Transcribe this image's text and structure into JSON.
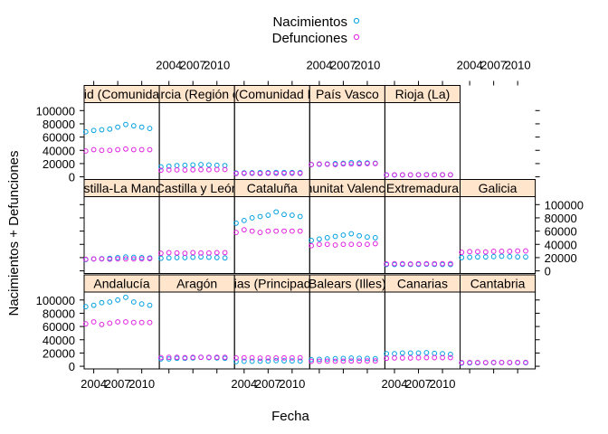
{
  "chart_data": {
    "type": "scatter",
    "layout": "lattice-trellis",
    "xlabel": "Fecha",
    "ylabel": "Nacimientos + Defunciones",
    "x_ticks": [
      "2004",
      "2007",
      "2010"
    ],
    "y_ticks": [
      "0",
      "20000",
      "40000",
      "60000",
      "80000",
      "100000"
    ],
    "xlim": [
      2002.8,
      2012.2
    ],
    "ylim": [
      -4000,
      112000
    ],
    "legend": {
      "position": "top",
      "entries": [
        {
          "name": "Nacimientos",
          "color": "#00a0e0"
        },
        {
          "name": "Defunciones",
          "color": "#e020e0"
        }
      ]
    },
    "x": [
      2003,
      2004,
      2005,
      2006,
      2007,
      2008,
      2009,
      2010,
      2011
    ],
    "panels": [
      {
        "label": "Andalucía",
        "row": 3,
        "col": 1,
        "nacimientos": [
          90000,
          92000,
          96000,
          97000,
          100000,
          104000,
          97000,
          94000,
          92000
        ],
        "defunciones": [
          64000,
          67000,
          63000,
          65000,
          67000,
          67000,
          66000,
          66000,
          66000
        ]
      },
      {
        "label": "Aragón",
        "row": 3,
        "col": 2,
        "nacimientos": [
          11000,
          11000,
          12000,
          12000,
          12500,
          13500,
          13000,
          12500,
          12000
        ],
        "defunciones": [
          13000,
          13500,
          13500,
          13000,
          13500,
          13500,
          13500,
          13500,
          13500
        ]
      },
      {
        "label": "Asturias (Principado de)",
        "row": 3,
        "col": 3,
        "nacimientos": [
          7000,
          7500,
          7500,
          7600,
          7800,
          8500,
          8200,
          8000,
          7800
        ],
        "defunciones": [
          12500,
          12800,
          12800,
          12300,
          12700,
          12500,
          12700,
          12600,
          12800
        ]
      },
      {
        "label": "Balears (Illes)",
        "row": 3,
        "col": 4,
        "nacimientos": [
          10000,
          10500,
          11000,
          11500,
          11800,
          12300,
          12000,
          11800,
          11500
        ],
        "defunciones": [
          7500,
          7600,
          7800,
          7600,
          7800,
          7900,
          7900,
          8000,
          8000
        ]
      },
      {
        "label": "Canarias",
        "row": 3,
        "col": 5,
        "nacimientos": [
          19000,
          19000,
          20000,
          20000,
          20000,
          20500,
          19500,
          19000,
          18000
        ],
        "defunciones": [
          12000,
          12500,
          12500,
          12500,
          12800,
          13000,
          13000,
          13000,
          13000
        ]
      },
      {
        "label": "Cantabria",
        "row": 3,
        "col": 6,
        "nacimientos": [
          4800,
          5000,
          5200,
          5300,
          5400,
          5700,
          5500,
          5400,
          5200
        ],
        "defunciones": [
          5500,
          5700,
          5700,
          5600,
          5800,
          5700,
          5700,
          5800,
          5800
        ]
      },
      {
        "label": "Castilla-La Mancha",
        "row": 2,
        "col": 1,
        "nacimientos": [
          17000,
          18000,
          18500,
          19000,
          20000,
          21000,
          20500,
          20000,
          19500
        ],
        "defunciones": [
          17500,
          18000,
          18000,
          17500,
          18000,
          18000,
          18000,
          18000,
          18500
        ]
      },
      {
        "label": "Castilla y León",
        "row": 2,
        "col": 2,
        "nacimientos": [
          19000,
          19500,
          20000,
          20000,
          20500,
          21000,
          20500,
          20000,
          19500
        ],
        "defunciones": [
          26500,
          27500,
          27000,
          26500,
          27500,
          27000,
          27000,
          27500,
          27500
        ]
      },
      {
        "label": "Cataluña",
        "row": 2,
        "col": 3,
        "nacimientos": [
          72000,
          76000,
          80000,
          82000,
          84000,
          89000,
          85000,
          84000,
          82000
        ],
        "defunciones": [
          58000,
          62000,
          60000,
          58000,
          60000,
          60000,
          60000,
          60000,
          60000
        ]
      },
      {
        "label": "Comunitat Valenciana",
        "row": 2,
        "col": 4,
        "nacimientos": [
          46000,
          48000,
          50000,
          52000,
          54000,
          56000,
          53000,
          51000,
          50000
        ],
        "defunciones": [
          38000,
          40000,
          40000,
          39000,
          40000,
          40000,
          40000,
          40000,
          41000
        ]
      },
      {
        "label": "Extremadura",
        "row": 2,
        "col": 5,
        "nacimientos": [
          9500,
          9600,
          9800,
          9700,
          9800,
          10000,
          9800,
          9600,
          9500
        ],
        "defunciones": [
          10500,
          10800,
          10800,
          10500,
          10700,
          10800,
          10700,
          10800,
          10900
        ]
      },
      {
        "label": "Galicia",
        "row": 2,
        "col": 6,
        "nacimientos": [
          20000,
          20500,
          21000,
          21000,
          21500,
          22000,
          21500,
          21000,
          21000
        ],
        "defunciones": [
          28000,
          29000,
          29000,
          28500,
          29500,
          29500,
          29500,
          30000,
          30000
        ]
      },
      {
        "label": "Madrid (Comunidad de)",
        "row": 1,
        "col": 1,
        "nacimientos": [
          68000,
          70000,
          71000,
          72000,
          75000,
          79000,
          77000,
          75000,
          73000
        ],
        "defunciones": [
          39000,
          41000,
          40000,
          40000,
          41000,
          42000,
          41000,
          41000,
          41000
        ]
      },
      {
        "label": "Murcia (Región de)",
        "row": 1,
        "col": 2,
        "nacimientos": [
          15000,
          16000,
          17000,
          17500,
          18000,
          18500,
          18000,
          17500,
          17000
        ],
        "defunciones": [
          10000,
          10500,
          10500,
          10300,
          10600,
          10800,
          10700,
          10900,
          11000
        ]
      },
      {
        "label": "Navarra (Comunidad Foral de)",
        "row": 1,
        "col": 3,
        "nacimientos": [
          5800,
          6000,
          6200,
          6300,
          6400,
          6700,
          6500,
          6500,
          6300
        ],
        "defunciones": [
          5000,
          5200,
          5200,
          5000,
          5300,
          5200,
          5200,
          5300,
          5300
        ]
      },
      {
        "label": "País Vasco",
        "row": 1,
        "col": 4,
        "nacimientos": [
          18500,
          19000,
          19500,
          20000,
          20500,
          21500,
          21000,
          21000,
          20500
        ],
        "defunciones": [
          18500,
          19500,
          19000,
          18500,
          19500,
          19500,
          19500,
          20000,
          20000
        ]
      },
      {
        "label": "Rioja (La)",
        "row": 1,
        "col": 5,
        "nacimientos": [
          2700,
          2800,
          2900,
          3000,
          3100,
          3300,
          3200,
          3100,
          3000
        ],
        "defunciones": [
          2900,
          3000,
          3000,
          2900,
          3000,
          3000,
          3000,
          3100,
          3100
        ]
      }
    ]
  }
}
